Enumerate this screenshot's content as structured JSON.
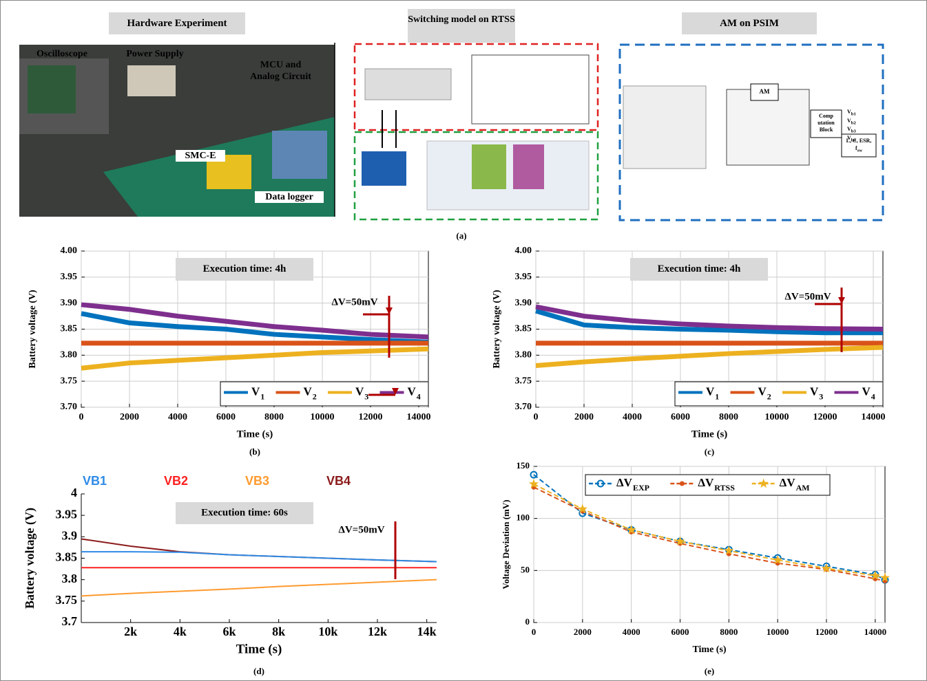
{
  "panel_a": {
    "caption": "(a)",
    "hardware": {
      "title": "Hardware Experiment",
      "labels": [
        "Oscilloscope",
        "Power Supply",
        "MCU and Analog Circuit",
        "SMC-E",
        "Data logger"
      ]
    },
    "rtss": {
      "title": "Switching model on RTSS"
    },
    "psim": {
      "title": "AM on PSIM",
      "am": "AM",
      "block": [
        "Comp",
        "utation",
        "Block"
      ],
      "inputs": [
        {
          "name": "V",
          "subscript": "b1"
        },
        {
          "name": "V",
          "subscript": "b2"
        },
        {
          "name": "V",
          "subscript": "b3"
        },
        {
          "name": "V",
          "subscript": "b4"
        }
      ],
      "params": "L, C, ESR,",
      "param_f": {
        "name": "f",
        "subscript": "sw"
      }
    }
  },
  "chart_data": [
    {
      "type": "line",
      "annotation": "Execution time: 4h",
      "delta_label": "ΔV=50mV",
      "x_label": "Time (s)",
      "y_label": "Battery voltage (V)",
      "caption": "(b)",
      "grid": true,
      "legend": "lower right",
      "x": [
        0,
        2000,
        4000,
        6000,
        8000,
        10000,
        12000,
        14400
      ],
      "series": [
        {
          "name": "V",
          "subscript": "1",
          "color": "#0072BD",
          "values": [
            3.88,
            3.862,
            3.855,
            3.85,
            3.84,
            3.835,
            3.83,
            3.825
          ]
        },
        {
          "name": "V",
          "subscript": "2",
          "color": "#D95319",
          "values": [
            3.823,
            3.823,
            3.823,
            3.823,
            3.823,
            3.823,
            3.823,
            3.823
          ]
        },
        {
          "name": "V",
          "subscript": "3",
          "color": "#EDB120",
          "values": [
            3.775,
            3.785,
            3.79,
            3.795,
            3.8,
            3.805,
            3.808,
            3.812
          ]
        },
        {
          "name": "V",
          "subscript": "4",
          "color": "#7E2F8E",
          "values": [
            3.897,
            3.888,
            3.875,
            3.865,
            3.855,
            3.848,
            3.84,
            3.835
          ]
        }
      ],
      "xlim": [
        0,
        14400
      ],
      "ylim": [
        3.7,
        4.0
      ],
      "xticks": [
        0,
        2000,
        4000,
        6000,
        8000,
        10000,
        12000,
        14000
      ],
      "yticks": [
        {
          "value": 3.7,
          "label": "3.70"
        },
        3.75,
        {
          "value": 3.8,
          "label": "3.80"
        },
        3.85,
        {
          "value": 3.9,
          "label": "3.90"
        },
        3.95,
        {
          "value": 4.0,
          "label": "4.00"
        }
      ]
    },
    {
      "type": "line",
      "annotation": "Execution time: 4h",
      "delta_label": "ΔV=50mV",
      "x_label": "Time (s)",
      "y_label": "Battery voltage (V)",
      "caption": "(c)",
      "grid": true,
      "legend": "lower right",
      "x": [
        0,
        2000,
        4000,
        6000,
        8000,
        10000,
        12000,
        14400
      ],
      "series": [
        {
          "name": "V",
          "subscript": "1",
          "color": "#0072BD",
          "values": [
            3.885,
            3.858,
            3.853,
            3.85,
            3.848,
            3.845,
            3.843,
            3.843
          ]
        },
        {
          "name": "V",
          "subscript": "2",
          "color": "#D95319",
          "values": [
            3.823,
            3.823,
            3.823,
            3.823,
            3.823,
            3.823,
            3.823,
            3.823
          ]
        },
        {
          "name": "V",
          "subscript": "3",
          "color": "#EDB120",
          "values": [
            3.78,
            3.787,
            3.793,
            3.798,
            3.803,
            3.807,
            3.811,
            3.815
          ]
        },
        {
          "name": "V",
          "subscript": "4",
          "color": "#7E2F8E",
          "values": [
            3.893,
            3.875,
            3.866,
            3.86,
            3.856,
            3.853,
            3.851,
            3.85
          ]
        }
      ],
      "xlim": [
        0,
        14400
      ],
      "ylim": [
        3.7,
        4.0
      ],
      "xticks": [
        0,
        2000,
        4000,
        6000,
        8000,
        10000,
        12000,
        14000
      ],
      "yticks": [
        {
          "value": 3.7,
          "label": "3.70"
        },
        3.75,
        {
          "value": 3.8,
          "label": "3.80"
        },
        3.85,
        {
          "value": 3.9,
          "label": "3.90"
        },
        3.95,
        {
          "value": 4.0,
          "label": "4.00"
        }
      ]
    },
    {
      "type": "line",
      "annotation": "Execution time: 60s",
      "delta_label": "ΔV=50mV",
      "x_label": "Time (s)",
      "y_label": "Battery voltage (V)",
      "caption": "(d)",
      "grid": false,
      "legend": "top",
      "x": [
        0,
        2000,
        4000,
        6000,
        8000,
        10000,
        12000,
        14400
      ],
      "series": [
        {
          "name": "VB1",
          "color": "#2E8BE6",
          "values": [
            3.865,
            3.865,
            3.864,
            3.858,
            3.854,
            3.85,
            3.846,
            3.842
          ]
        },
        {
          "name": "VB2",
          "color": "#FF2020",
          "values": [
            3.828,
            3.828,
            3.828,
            3.828,
            3.828,
            3.828,
            3.828,
            3.828
          ]
        },
        {
          "name": "VB3",
          "color": "#FF9A2E",
          "values": [
            3.762,
            3.768,
            3.773,
            3.778,
            3.784,
            3.789,
            3.794,
            3.8
          ]
        },
        {
          "name": "VB4",
          "color": "#8B1A1A",
          "values": [
            3.895,
            3.878,
            3.865,
            3.858,
            3.854,
            3.85,
            3.846,
            3.842
          ]
        }
      ],
      "xlim": [
        0,
        14400
      ],
      "ylim": [
        3.7,
        4
      ],
      "xticks": [
        {
          "value": 2000,
          "label": "2k"
        },
        {
          "value": 4000,
          "label": "4k"
        },
        {
          "value": 6000,
          "label": "6k"
        },
        {
          "value": 8000,
          "label": "8k"
        },
        {
          "value": 10000,
          "label": "10k"
        },
        {
          "value": 12000,
          "label": "12k"
        },
        {
          "value": 14000,
          "label": "14k"
        }
      ],
      "yticks": [
        3.7,
        3.75,
        3.8,
        3.85,
        3.9,
        3.95,
        4
      ]
    },
    {
      "type": "line",
      "markers": true,
      "x_label": "Time (s)",
      "y_label": "Voltage Deviation (mV)",
      "caption": "(e)",
      "grid": true,
      "legend": "upper right",
      "x": [
        0,
        2000,
        4000,
        6000,
        8000,
        10000,
        12000,
        14000,
        14400
      ],
      "series": [
        {
          "name": "ΔV",
          "subscript": "EXP",
          "color": "#0072BD",
          "marker": "o",
          "values": [
            142,
            105,
            89,
            78,
            70,
            62,
            54,
            46,
            41
          ]
        },
        {
          "name": "ΔV",
          "subscript": "RTSS",
          "color": "#D95319",
          "marker": ".",
          "values": [
            130,
            107,
            87,
            76,
            66,
            57,
            51,
            42,
            40
          ]
        },
        {
          "name": "ΔV",
          "subscript": "AM",
          "color": "#EDB120",
          "marker": "*",
          "values": [
            133,
            109,
            89,
            78,
            69,
            60,
            52,
            45,
            43
          ]
        }
      ],
      "xlim": [
        0,
        14400
      ],
      "ylim": [
        0,
        150
      ],
      "xticks": [
        0,
        2000,
        4000,
        6000,
        8000,
        10000,
        12000,
        14000
      ],
      "yticks": [
        0,
        50,
        100,
        150
      ]
    }
  ]
}
